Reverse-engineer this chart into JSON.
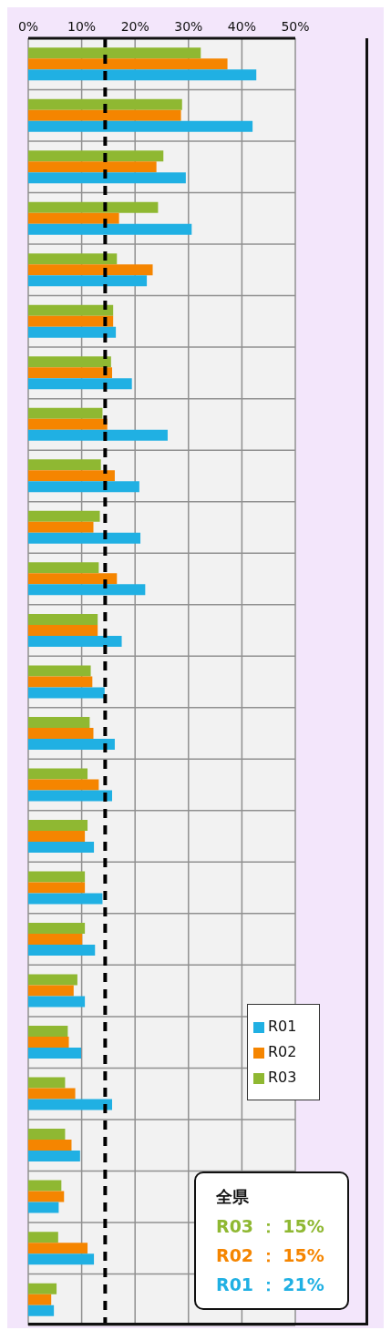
{
  "chart_data": {
    "type": "bar",
    "orientation": "horizontal",
    "categories": [
      null,
      null,
      null,
      null,
      null,
      null,
      null,
      null,
      null,
      null,
      null,
      null,
      null,
      null,
      null,
      null,
      null,
      null,
      null,
      null,
      null,
      null,
      null,
      null,
      null
    ],
    "series": [
      {
        "name": "R03",
        "color": "#8fb832",
        "values": [
          32.3,
          28.8,
          25.3,
          24.3,
          16.6,
          15.9,
          15.5,
          13.9,
          13.6,
          13.4,
          13.2,
          13.0,
          11.7,
          11.5,
          11.1,
          11.1,
          10.6,
          10.6,
          9.2,
          7.4,
          6.9,
          6.9,
          6.2,
          5.6,
          5.3
        ]
      },
      {
        "name": "R02",
        "color": "#f58500",
        "values": [
          37.3,
          28.6,
          24.0,
          17.0,
          23.3,
          15.9,
          15.7,
          14.8,
          16.2,
          12.2,
          16.6,
          13.0,
          12.0,
          12.2,
          13.2,
          10.6,
          10.6,
          10.1,
          8.5,
          7.6,
          8.8,
          8.1,
          6.7,
          11.1,
          4.3
        ]
      },
      {
        "name": "R01",
        "color": "#20b0e3",
        "values": [
          42.7,
          42.0,
          29.5,
          30.6,
          22.2,
          16.4,
          19.4,
          26.1,
          20.8,
          21.0,
          21.9,
          17.5,
          14.3,
          16.2,
          15.7,
          12.3,
          13.9,
          12.5,
          10.6,
          9.9,
          15.7,
          9.7,
          5.7,
          12.3,
          4.8
        ]
      }
    ],
    "xlim": [
      0,
      50
    ],
    "xticks": [
      {
        "value": 0,
        "label": "0%"
      },
      {
        "value": 10,
        "label": "10%"
      },
      {
        "value": 20,
        "label": "20%"
      },
      {
        "value": 30,
        "label": "30%"
      },
      {
        "value": 40,
        "label": "40%"
      },
      {
        "value": 50,
        "label": "50%"
      }
    ],
    "ref_lines": [
      {
        "axis": "x",
        "value": 14.4,
        "color": "#000000",
        "line_style": "dashed"
      }
    ],
    "grid": true,
    "legend": "right",
    "tick_labels": "x",
    "annotations": [
      "全県",
      "R03 ： 15%",
      "R02 ： 15%",
      "R01 ： 21%"
    ]
  }
}
